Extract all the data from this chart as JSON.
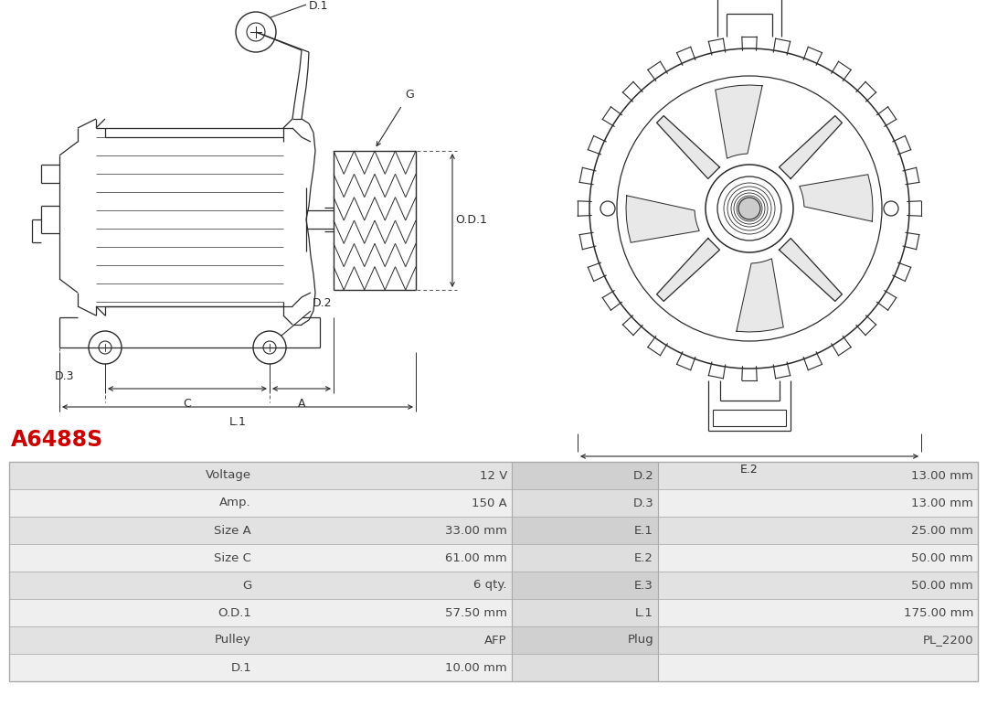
{
  "title": "A6488S",
  "title_color": "#cc0000",
  "bg_color": "#ffffff",
  "table_rows": [
    {
      "left_label": "Voltage",
      "left_val": "12 V",
      "right_label": "D.2",
      "right_val": "13.00 mm"
    },
    {
      "left_label": "Amp.",
      "left_val": "150 A",
      "right_label": "D.3",
      "right_val": "13.00 mm"
    },
    {
      "left_label": "Size A",
      "left_val": "33.00 mm",
      "right_label": "E.1",
      "right_val": "25.00 mm"
    },
    {
      "left_label": "Size C",
      "left_val": "61.00 mm",
      "right_label": "E.2",
      "right_val": "50.00 mm"
    },
    {
      "left_label": "G",
      "left_val": "6 qty.",
      "right_label": "E.3",
      "right_val": "50.00 mm"
    },
    {
      "left_label": "O.D.1",
      "left_val": "57.50 mm",
      "right_label": "L.1",
      "right_val": "175.00 mm"
    },
    {
      "left_label": "Pulley",
      "left_val": "AFP",
      "right_label": "Plug",
      "right_val": "PL_2200"
    },
    {
      "left_label": "D.1",
      "left_val": "10.00 mm",
      "right_label": "",
      "right_val": ""
    }
  ],
  "row_colors": [
    "#e2e2e2",
    "#efefef"
  ],
  "mid_col_colors": [
    "#d0d0d0",
    "#dedede"
  ],
  "border_color": "#aaaaaa",
  "text_color": "#444444",
  "line_color": "#2a2a2a",
  "dim_color": "#2a2a2a",
  "fig_width": 10.8,
  "fig_height": 7.95,
  "dpi": 100
}
